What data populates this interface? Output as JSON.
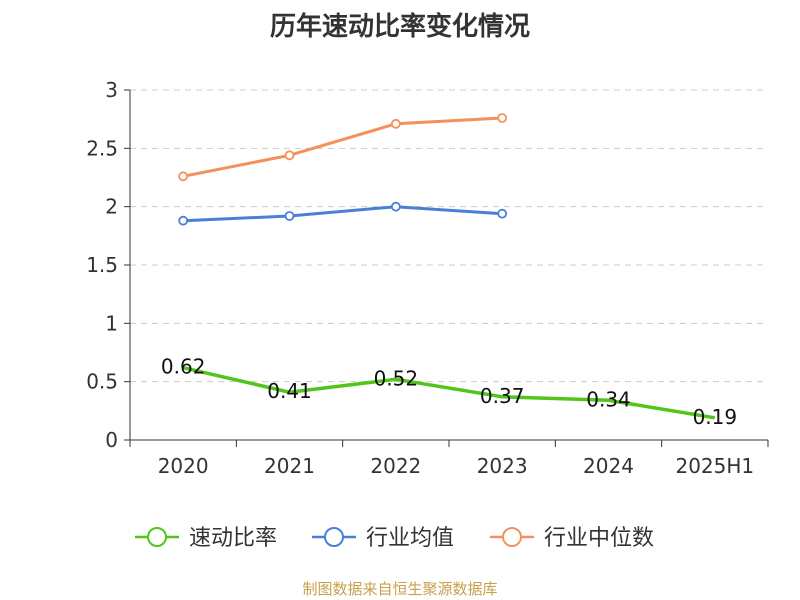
{
  "chart_data": {
    "type": "line",
    "title": "历年速动比率变化情况",
    "categories": [
      "2020",
      "2021",
      "2022",
      "2023",
      "2024",
      "2025H1"
    ],
    "ylim": [
      0,
      3
    ],
    "yticks": [
      0,
      0.5,
      1,
      1.5,
      2,
      2.5,
      3
    ],
    "ytick_labels": [
      "0",
      "0.5",
      "1",
      "1.5",
      "2",
      "2.5",
      "3"
    ],
    "grid": true,
    "legend_position": "bottom",
    "series": [
      {
        "name": "速动比率",
        "color": "#52c41a",
        "values": [
          0.62,
          0.41,
          0.52,
          0.37,
          0.34,
          0.19
        ],
        "labels": [
          "0.62",
          "0.41",
          "0.52",
          "0.37",
          "0.34",
          "0.19"
        ]
      },
      {
        "name": "行业均值",
        "color": "#4a7fd6",
        "values": [
          1.88,
          1.92,
          2.0,
          1.94,
          null,
          null
        ]
      },
      {
        "name": "行业中位数",
        "color": "#f5905a",
        "values": [
          2.26,
          2.44,
          2.71,
          2.76,
          null,
          null
        ]
      }
    ]
  },
  "footer": {
    "source": "制图数据来自恒生聚源数据库"
  }
}
